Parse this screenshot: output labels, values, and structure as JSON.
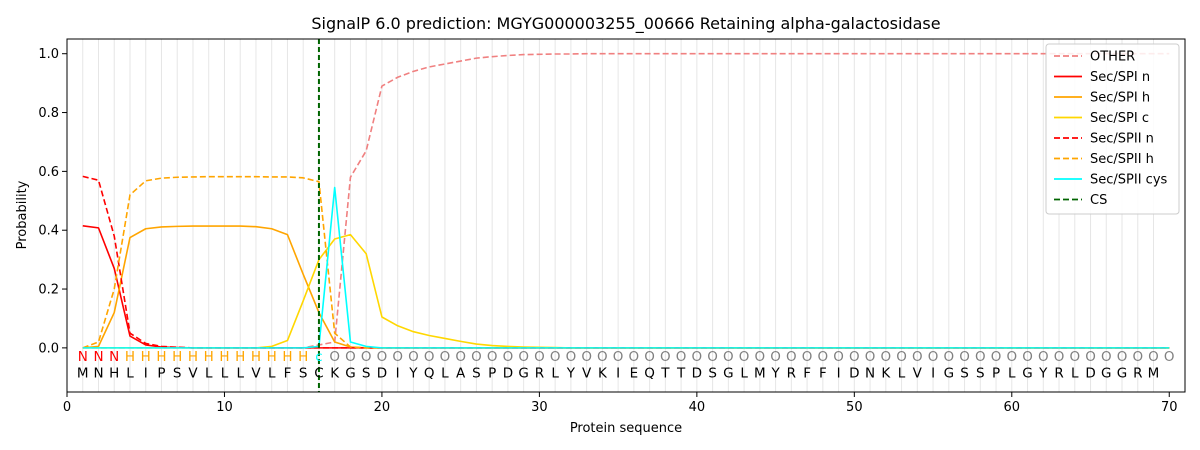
{
  "chart_data": {
    "type": "line",
    "title": "SignalP 6.0 prediction: MGYG000003255_00666 Retaining alpha-galactosidase",
    "xlabel": "Protein sequence",
    "ylabel": "Probability",
    "xlim": [
      0,
      71
    ],
    "ylim": [
      -0.15,
      1.05
    ],
    "x_ticks": [
      0,
      10,
      20,
      30,
      40,
      50,
      60,
      70
    ],
    "y_ticks": [
      0.0,
      0.2,
      0.4,
      0.6,
      0.8,
      1.0
    ],
    "grid": "vertical lines at each residue",
    "legend_position": "top-right",
    "sequence": [
      "M",
      "N",
      "H",
      "L",
      "I",
      "P",
      "S",
      "V",
      "L",
      "L",
      "L",
      "V",
      "L",
      "F",
      "S",
      "C",
      "K",
      "G",
      "S",
      "D",
      "I",
      "Y",
      "Q",
      "L",
      "A",
      "S",
      "P",
      "D",
      "G",
      "R",
      "L",
      "Y",
      "V",
      "K",
      "I",
      "E",
      "Q",
      "T",
      "T",
      "D",
      "S",
      "G",
      "L",
      "M",
      "Y",
      "R",
      "F",
      "F",
      "I",
      "D",
      "N",
      "K",
      "L",
      "V",
      "I",
      "G",
      "S",
      "S",
      "P",
      "L",
      "G",
      "Y",
      "R",
      "L",
      "D",
      "G",
      "G",
      "R",
      "M"
    ],
    "annotation": [
      "N",
      "N",
      "N",
      "H",
      "H",
      "H",
      "H",
      "H",
      "H",
      "H",
      "H",
      "H",
      "H",
      "H",
      "H",
      "c",
      "O",
      "O",
      "O",
      "O",
      "O",
      "O",
      "O",
      "O",
      "O",
      "O",
      "O",
      "O",
      "O",
      "O",
      "O",
      "O",
      "O",
      "O",
      "O",
      "O",
      "O",
      "O",
      "O",
      "O",
      "O",
      "O",
      "O",
      "O",
      "O",
      "O",
      "O",
      "O",
      "O",
      "O",
      "O",
      "O",
      "O",
      "O",
      "O",
      "O",
      "O",
      "O",
      "O",
      "O",
      "O",
      "O",
      "O",
      "O",
      "O",
      "O",
      "O",
      "O",
      "O",
      "O"
    ],
    "annotation_colors": {
      "N": "#ff0000",
      "H": "#ffa500",
      "c": "#00ffff",
      "O": "#808080"
    },
    "cleavage_site": 16,
    "series": [
      {
        "name": "OTHER",
        "color": "#f08080",
        "dash": "dashed",
        "values": [
          0.0,
          0.0,
          0.0,
          0.0,
          0.0,
          0.0,
          0.0,
          0.0,
          0.0,
          0.0,
          0.0,
          0.0,
          0.0,
          0.0,
          0.0,
          0.01,
          0.02,
          0.58,
          0.67,
          0.89,
          0.92,
          0.94,
          0.955,
          0.965,
          0.975,
          0.985,
          0.99,
          0.994,
          0.997,
          0.998,
          0.999,
          0.999,
          1.0,
          1.0,
          1.0,
          1.0,
          1.0,
          1.0,
          1.0,
          1.0,
          1.0,
          1.0,
          1.0,
          1.0,
          1.0,
          1.0,
          1.0,
          1.0,
          1.0,
          1.0,
          1.0,
          1.0,
          1.0,
          1.0,
          1.0,
          1.0,
          1.0,
          1.0,
          1.0,
          1.0,
          1.0,
          1.0,
          1.0,
          1.0,
          1.0,
          1.0,
          1.0,
          1.0,
          1.0,
          1.0
        ]
      },
      {
        "name": "Sec/SPI n",
        "color": "#ff0000",
        "dash": "solid",
        "values": [
          0.415,
          0.408,
          0.27,
          0.04,
          0.01,
          0.003,
          0.001,
          0.0,
          0.0,
          0.0,
          0.0,
          0.0,
          0.0,
          0.0,
          0.0,
          0.0,
          0.0,
          0.0,
          0.0,
          0.0,
          0.0,
          0.0,
          0.0,
          0.0,
          0.0,
          0.0,
          0.0,
          0.0,
          0.0,
          0.0,
          0.0,
          0.0,
          0.0,
          0.0,
          0.0,
          0.0,
          0.0,
          0.0,
          0.0,
          0.0,
          0.0,
          0.0,
          0.0,
          0.0,
          0.0,
          0.0,
          0.0,
          0.0,
          0.0,
          0.0,
          0.0,
          0.0,
          0.0,
          0.0,
          0.0,
          0.0,
          0.0,
          0.0,
          0.0,
          0.0,
          0.0,
          0.0,
          0.0,
          0.0,
          0.0,
          0.0,
          0.0,
          0.0,
          0.0,
          0.0
        ]
      },
      {
        "name": "Sec/SPI h",
        "color": "#ffa500",
        "dash": "solid",
        "values": [
          0.0,
          0.005,
          0.12,
          0.375,
          0.405,
          0.411,
          0.413,
          0.414,
          0.414,
          0.414,
          0.414,
          0.412,
          0.405,
          0.385,
          0.25,
          0.12,
          0.02,
          0.003,
          0.0,
          0.0,
          0.0,
          0.0,
          0.0,
          0.0,
          0.0,
          0.0,
          0.0,
          0.0,
          0.0,
          0.0,
          0.0,
          0.0,
          0.0,
          0.0,
          0.0,
          0.0,
          0.0,
          0.0,
          0.0,
          0.0,
          0.0,
          0.0,
          0.0,
          0.0,
          0.0,
          0.0,
          0.0,
          0.0,
          0.0,
          0.0,
          0.0,
          0.0,
          0.0,
          0.0,
          0.0,
          0.0,
          0.0,
          0.0,
          0.0,
          0.0,
          0.0,
          0.0,
          0.0,
          0.0,
          0.0,
          0.0,
          0.0,
          0.0,
          0.0,
          0.0
        ]
      },
      {
        "name": "Sec/SPI c",
        "color": "#ffd700",
        "dash": "solid",
        "values": [
          0.0,
          0.0,
          0.0,
          0.0,
          0.0,
          0.0,
          0.0,
          0.0,
          0.0,
          0.0,
          0.0,
          0.0,
          0.005,
          0.025,
          0.16,
          0.3,
          0.37,
          0.385,
          0.32,
          0.105,
          0.075,
          0.055,
          0.042,
          0.032,
          0.022,
          0.013,
          0.008,
          0.005,
          0.003,
          0.002,
          0.001,
          0.0,
          0.0,
          0.0,
          0.0,
          0.0,
          0.0,
          0.0,
          0.0,
          0.0,
          0.0,
          0.0,
          0.0,
          0.0,
          0.0,
          0.0,
          0.0,
          0.0,
          0.0,
          0.0,
          0.0,
          0.0,
          0.0,
          0.0,
          0.0,
          0.0,
          0.0,
          0.0,
          0.0,
          0.0,
          0.0,
          0.0,
          0.0,
          0.0,
          0.0,
          0.0,
          0.0,
          0.0,
          0.0,
          0.0
        ]
      },
      {
        "name": "Sec/SPII n",
        "color": "#ff0000",
        "dash": "dashed",
        "values": [
          0.583,
          0.57,
          0.38,
          0.05,
          0.015,
          0.005,
          0.002,
          0.0,
          0.0,
          0.0,
          0.0,
          0.0,
          0.0,
          0.0,
          0.0,
          0.0,
          0.0,
          0.0,
          0.0,
          0.0,
          0.0,
          0.0,
          0.0,
          0.0,
          0.0,
          0.0,
          0.0,
          0.0,
          0.0,
          0.0,
          0.0,
          0.0,
          0.0,
          0.0,
          0.0,
          0.0,
          0.0,
          0.0,
          0.0,
          0.0,
          0.0,
          0.0,
          0.0,
          0.0,
          0.0,
          0.0,
          0.0,
          0.0,
          0.0,
          0.0,
          0.0,
          0.0,
          0.0,
          0.0,
          0.0,
          0.0,
          0.0,
          0.0,
          0.0,
          0.0,
          0.0,
          0.0,
          0.0,
          0.0,
          0.0,
          0.0,
          0.0,
          0.0,
          0.0,
          0.0
        ]
      },
      {
        "name": "Sec/SPII h",
        "color": "#ffa500",
        "dash": "dashed",
        "values": [
          0.0,
          0.02,
          0.2,
          0.52,
          0.568,
          0.577,
          0.58,
          0.581,
          0.582,
          0.582,
          0.582,
          0.582,
          0.581,
          0.581,
          0.578,
          0.565,
          0.05,
          0.003,
          0.0,
          0.0,
          0.0,
          0.0,
          0.0,
          0.0,
          0.0,
          0.0,
          0.0,
          0.0,
          0.0,
          0.0,
          0.0,
          0.0,
          0.0,
          0.0,
          0.0,
          0.0,
          0.0,
          0.0,
          0.0,
          0.0,
          0.0,
          0.0,
          0.0,
          0.0,
          0.0,
          0.0,
          0.0,
          0.0,
          0.0,
          0.0,
          0.0,
          0.0,
          0.0,
          0.0,
          0.0,
          0.0,
          0.0,
          0.0,
          0.0,
          0.0,
          0.0,
          0.0,
          0.0,
          0.0,
          0.0,
          0.0,
          0.0,
          0.0,
          0.0,
          0.0
        ]
      },
      {
        "name": "Sec/SPII cys",
        "color": "#00ffff",
        "dash": "solid",
        "values": [
          0.0,
          0.0,
          0.0,
          0.0,
          0.0,
          0.0,
          0.0,
          0.0,
          0.0,
          0.0,
          0.0,
          0.0,
          0.0,
          0.0,
          0.0,
          0.005,
          0.545,
          0.02,
          0.005,
          0.0,
          0.0,
          0.0,
          0.0,
          0.0,
          0.0,
          0.0,
          0.0,
          0.0,
          0.0,
          0.0,
          0.0,
          0.0,
          0.0,
          0.0,
          0.0,
          0.0,
          0.0,
          0.0,
          0.0,
          0.0,
          0.0,
          0.0,
          0.0,
          0.0,
          0.0,
          0.0,
          0.0,
          0.0,
          0.0,
          0.0,
          0.0,
          0.0,
          0.0,
          0.0,
          0.0,
          0.0,
          0.0,
          0.0,
          0.0,
          0.0,
          0.0,
          0.0,
          0.0,
          0.0,
          0.0,
          0.0,
          0.0,
          0.0,
          0.0,
          0.0
        ]
      }
    ],
    "legend": [
      {
        "label": "OTHER",
        "color": "#f08080",
        "dash": "dashed"
      },
      {
        "label": "Sec/SPI n",
        "color": "#ff0000",
        "dash": "solid"
      },
      {
        "label": "Sec/SPI h",
        "color": "#ffa500",
        "dash": "solid"
      },
      {
        "label": "Sec/SPI c",
        "color": "#ffd700",
        "dash": "solid"
      },
      {
        "label": "Sec/SPII n",
        "color": "#ff0000",
        "dash": "dashed"
      },
      {
        "label": "Sec/SPII h",
        "color": "#ffa500",
        "dash": "dashed"
      },
      {
        "label": "Sec/SPII cys",
        "color": "#00ffff",
        "dash": "solid"
      },
      {
        "label": "CS",
        "color": "#006400",
        "dash": "dashed"
      }
    ]
  }
}
